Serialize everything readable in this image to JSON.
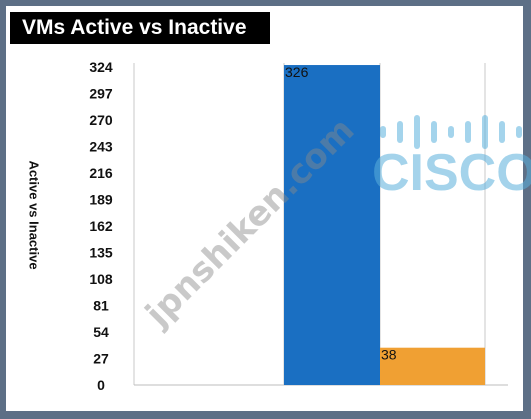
{
  "chart_data": {
    "type": "bar",
    "title": "VMs Active vs Inactive",
    "ylabel": "Active vs Inactive",
    "xlabel": "",
    "categories": [
      "",
      ""
    ],
    "values": [
      326,
      38
    ],
    "data_labels": [
      "326",
      "38"
    ],
    "ylim": [
      0,
      324
    ],
    "y_ticks": [
      "324",
      "297",
      "270",
      "243",
      "216",
      "189",
      "162",
      "135",
      "108",
      "81",
      "54",
      "27",
      "0"
    ],
    "grid": true,
    "legend": "none"
  },
  "colors": {
    "bar_active": "#1a6fc2",
    "bar_inactive": "#f0a033",
    "border": "#5d6f86",
    "title_bg": "#000000"
  },
  "watermark": {
    "text": "jpnshiken.com",
    "logo": "CISCO"
  }
}
